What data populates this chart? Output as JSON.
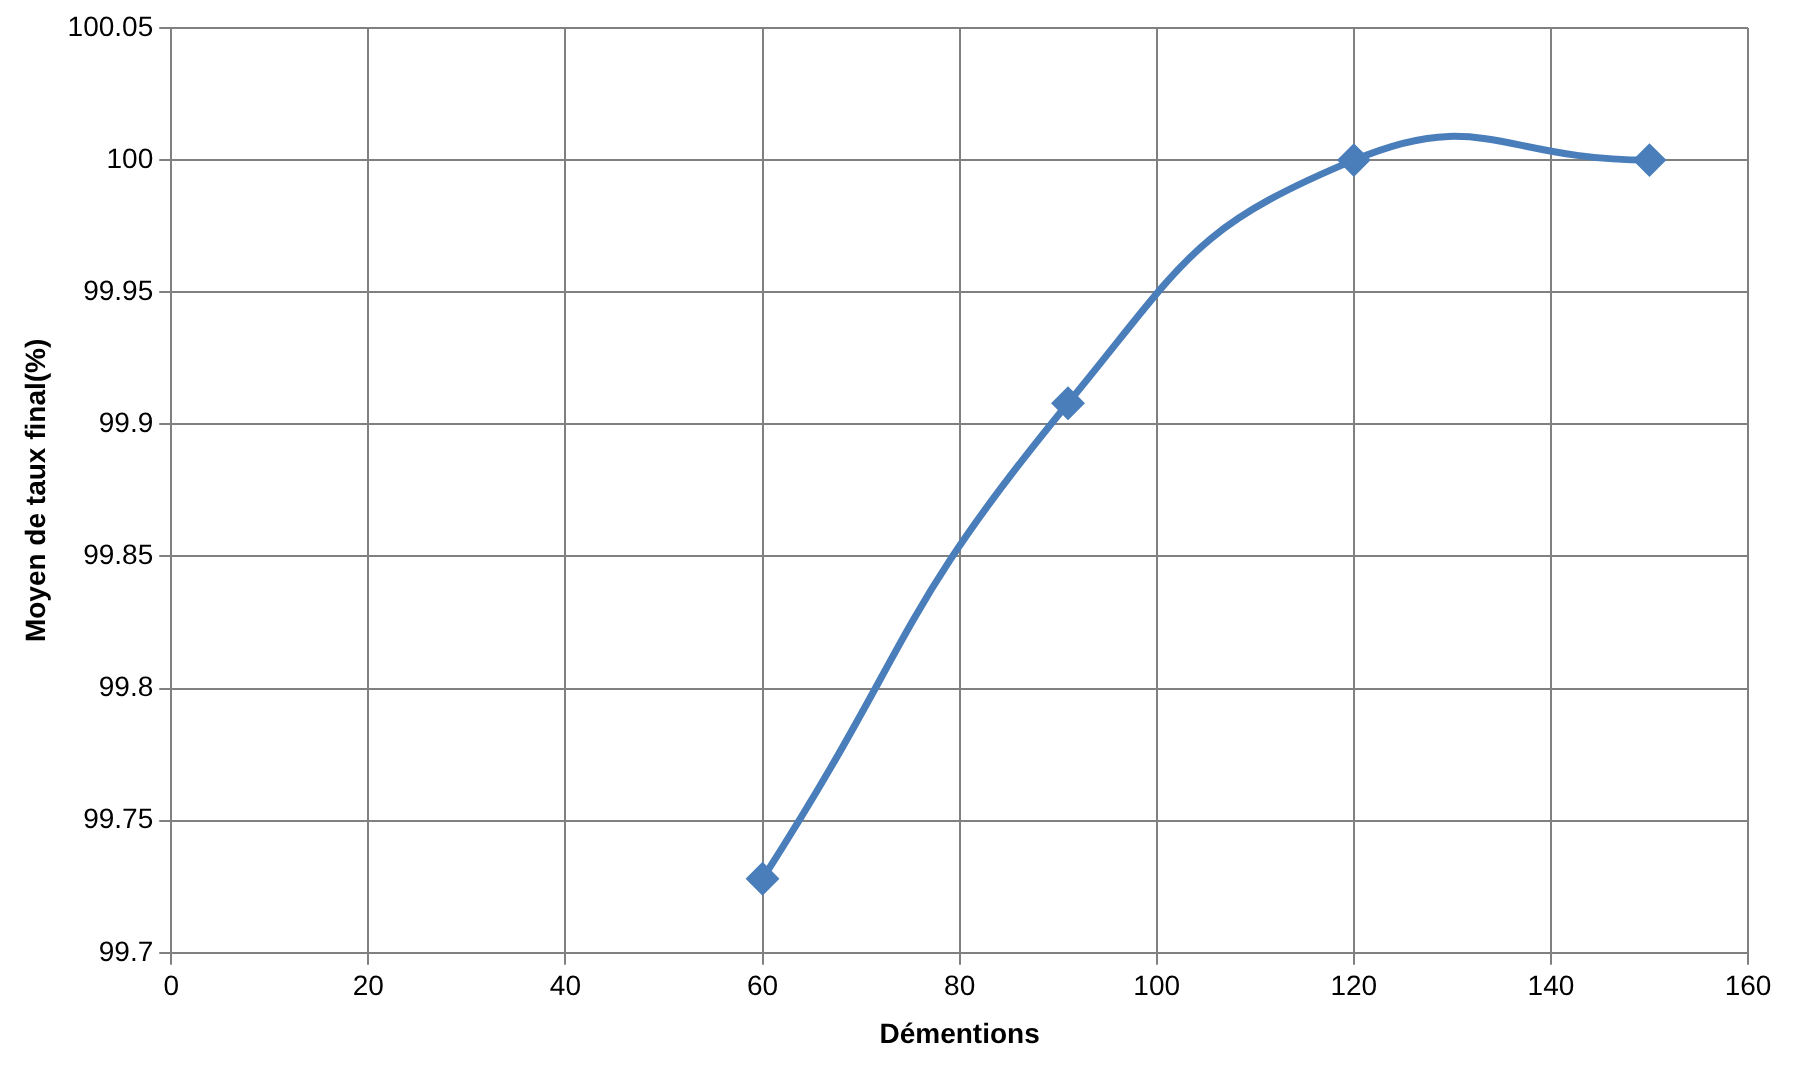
{
  "chart_data": {
    "type": "line",
    "xlabel": "Démentions",
    "ylabel": "Moyen de taux final(%)",
    "x": [
      60,
      91,
      120,
      150
    ],
    "series": [
      {
        "color": "#4a7ebb",
        "values": [
          99.728,
          99.908,
          100,
          100
        ]
      }
    ],
    "xlim": [
      0,
      160
    ],
    "xticks": [
      0,
      20,
      40,
      60,
      80,
      100,
      120,
      140,
      160
    ],
    "ylim": [
      99.7,
      100.05
    ],
    "yticks": [
      99.7,
      99.75,
      99.8,
      99.85,
      99.9,
      99.95,
      100,
      100.05
    ],
    "grid": true,
    "legend": false,
    "marker": "diamond",
    "line_style": "solid"
  }
}
